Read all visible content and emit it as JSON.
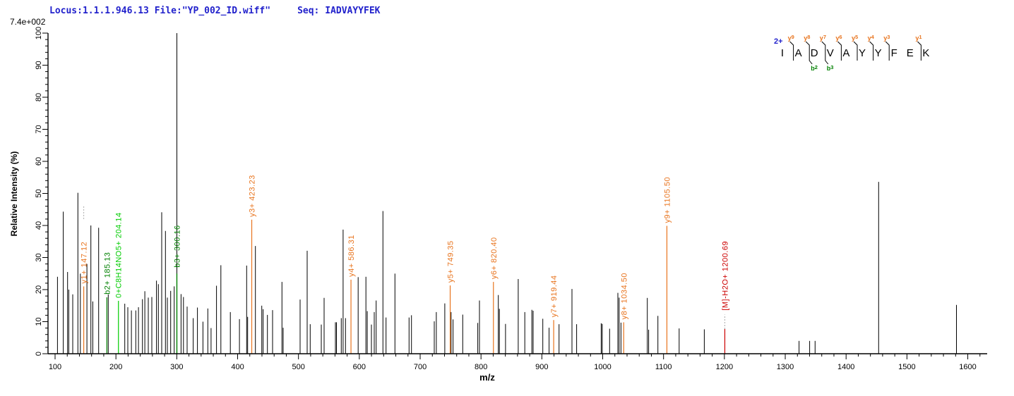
{
  "header": {
    "locus_file": "Locus:1.1.1.946.13 File:\"YP_002_ID.wiff\"",
    "seq_label": "Seq: IADVAYYFEK",
    "max_intensity": "7.4e+002",
    "header_color": "#2222cc"
  },
  "chart_data": {
    "type": "bar",
    "subtype": "centroided-msms-stick-spectrum",
    "title": "",
    "xlabel": "m/z",
    "ylabel": "Relative  Intensity (%)",
    "x_axis": {
      "min": 100,
      "max": 1628,
      "major_tick_step": 100,
      "minor_tick_step": 20,
      "tick_labels": [
        100,
        200,
        300,
        400,
        500,
        600,
        700,
        800,
        900,
        1000,
        1100,
        1200,
        1300,
        1400,
        1500,
        1600
      ]
    },
    "y_axis": {
      "min": 0,
      "max": 100,
      "major_tick_step": 10,
      "minor_tick_step": 2,
      "tick_labels": [
        0,
        10,
        20,
        30,
        40,
        50,
        60,
        70,
        80,
        90,
        100
      ],
      "labels_rotated": true
    },
    "grid": false,
    "base_peak_absolute_intensity": "7.4e+002",
    "colors": {
      "peak": "#000000",
      "y_ion": "#e8741e",
      "b_ion": "#008000",
      "neutral_loss": "#00cc00",
      "precursor_loss": "#cc0000",
      "dash": "#aaaaaa"
    },
    "peaks": [
      [
        104,
        24
      ],
      [
        113.5,
        44.3
      ],
      [
        120.5,
        25.5
      ],
      [
        122.5,
        20
      ],
      [
        129,
        18.5
      ],
      [
        137.5,
        50.2
      ],
      [
        141.5,
        25
      ],
      [
        152.3,
        28
      ],
      [
        158.8,
        40
      ],
      [
        162,
        16.3
      ],
      [
        171.6,
        39.3
      ],
      [
        187.4,
        18.5
      ],
      [
        214.5,
        15.6
      ],
      [
        219.5,
        14.5
      ],
      [
        225.5,
        13.5
      ],
      [
        232.7,
        13.5
      ],
      [
        237,
        14.5
      ],
      [
        243.5,
        17
      ],
      [
        247.5,
        19.5
      ],
      [
        253.2,
        17.5
      ],
      [
        259,
        17.7
      ],
      [
        266.7,
        22.8
      ],
      [
        269.8,
        21.7
      ],
      [
        275.2,
        44.1
      ],
      [
        281.4,
        38.3
      ],
      [
        284.5,
        17.5
      ],
      [
        290,
        19.6
      ],
      [
        295.8,
        21
      ],
      [
        307,
        18.6
      ],
      [
        311,
        17.7
      ],
      [
        317,
        14.7
      ],
      [
        327,
        11.1
      ],
      [
        334,
        14.4
      ],
      [
        343,
        10
      ],
      [
        351,
        14.1
      ],
      [
        356.4,
        8
      ],
      [
        365.3,
        21.2
      ],
      [
        372.5,
        27.6
      ],
      [
        388,
        13
      ],
      [
        403,
        10.8
      ],
      [
        414.8,
        27.5
      ],
      [
        416.5,
        11.5
      ],
      [
        429.2,
        33.6
      ],
      [
        439.7,
        15
      ],
      [
        441.9,
        13.9
      ],
      [
        449,
        12.1
      ],
      [
        457.4,
        13.6
      ],
      [
        472.9,
        22.4
      ],
      [
        474.8,
        8.1
      ],
      [
        502.7,
        16.9
      ],
      [
        514.3,
        32.1
      ],
      [
        519.3,
        9.2
      ],
      [
        537.5,
        9.1
      ],
      [
        542.1,
        17.4
      ],
      [
        560.7,
        9.8
      ],
      [
        562.5,
        9.8
      ],
      [
        570.3,
        11.1
      ],
      [
        573.4,
        38.7
      ],
      [
        577.3,
        11.1
      ],
      [
        598.1,
        23.9
      ],
      [
        610.9,
        24
      ],
      [
        613,
        13.3
      ],
      [
        619.9,
        9.1
      ],
      [
        624.5,
        13
      ],
      [
        627.7,
        16.6
      ],
      [
        638.8,
        44.5
      ],
      [
        643.9,
        11.3
      ],
      [
        658.6,
        25
      ],
      [
        681.8,
        11.3
      ],
      [
        685.7,
        12
      ],
      [
        723.2,
        10.1
      ],
      [
        726.6,
        13
      ],
      [
        740.5,
        15.7
      ],
      [
        750.8,
        13
      ],
      [
        754.1,
        10.7
      ],
      [
        769.9,
        12.2
      ],
      [
        794.7,
        9.6
      ],
      [
        797.5,
        16.6
      ],
      [
        828.5,
        18.3
      ],
      [
        830.2,
        14
      ],
      [
        840.3,
        9.3
      ],
      [
        861.2,
        23.3
      ],
      [
        872,
        13
      ],
      [
        883.6,
        13.7
      ],
      [
        885.6,
        13.4
      ],
      [
        901.5,
        10.9
      ],
      [
        911.9,
        8.1
      ],
      [
        928.2,
        9.2
      ],
      [
        949.5,
        20.2
      ],
      [
        957.2,
        9.2
      ],
      [
        997.5,
        9.5
      ],
      [
        999.3,
        9.3
      ],
      [
        1011.3,
        7.8
      ],
      [
        1024.9,
        19
      ],
      [
        1027,
        17.5
      ],
      [
        1030,
        9.7
      ],
      [
        1073.3,
        17.4
      ],
      [
        1075.5,
        7.5
      ],
      [
        1090.7,
        11.8
      ],
      [
        1125.6,
        7.9
      ],
      [
        1167,
        7.6
      ],
      [
        1322.7,
        4
      ],
      [
        1340.1,
        4
      ],
      [
        1349,
        4
      ],
      [
        1453.5,
        53.6
      ],
      [
        1581.4,
        15.2
      ]
    ],
    "labeled_peaks": [
      {
        "label": "y1+ 147.12",
        "mz": 147.12,
        "pct": 21,
        "color": "y_ion",
        "dash": [
          42,
          46
        ],
        "dash_above_label": true
      },
      {
        "label": "b2+ 185.13",
        "mz": 185.13,
        "pct": 17.6,
        "color": "b_ion"
      },
      {
        "label": "0+C8H14NO5+ 204.14",
        "mz": 204.14,
        "pct": 16.5,
        "color": "neutral_loss"
      },
      {
        "label": "b3+ 300.16",
        "mz": 300.16,
        "pct": 100,
        "color": "b_ion",
        "line_black": true,
        "overlay_pct": 25,
        "label_pct": 26
      },
      {
        "label": "y3+ 423.23",
        "mz": 423.23,
        "pct": 41.8,
        "color": "y_ion"
      },
      {
        "label": "y4+ 586.31",
        "mz": 586.31,
        "pct": 23.1,
        "color": "y_ion"
      },
      {
        "label": "y5+ 749.35",
        "mz": 749.35,
        "pct": 21.3,
        "color": "y_ion"
      },
      {
        "label": "y6+ 820.40",
        "mz": 820.4,
        "pct": 22.4,
        "color": "y_ion"
      },
      {
        "label": "y7+ 919.44",
        "mz": 919.44,
        "pct": 10.5,
        "color": "y_ion"
      },
      {
        "label": "y8+ 1034.50",
        "mz": 1034.5,
        "pct": 9.8,
        "color": "y_ion"
      },
      {
        "label": "y9+ 1105.50",
        "mz": 1105.5,
        "pct": 39.9,
        "color": "y_ion"
      },
      {
        "label": "[M]-H2O+ 1200.69",
        "mz": 1200.69,
        "pct": 7.7,
        "color": "precursor_loss",
        "dash": [
          7.7,
          12.2
        ],
        "label_pct": 12.6
      }
    ],
    "sequence_annotation": {
      "charge": "2+",
      "residues": [
        "I",
        "A",
        "D",
        "V",
        "A",
        "Y",
        "Y",
        "F",
        "E",
        "K"
      ],
      "y_ions": [
        {
          "gap": 1,
          "ion": "y",
          "num": "9"
        },
        {
          "gap": 2,
          "ion": "y",
          "num": "8"
        },
        {
          "gap": 3,
          "ion": "y",
          "num": "7"
        },
        {
          "gap": 4,
          "ion": "y",
          "num": "6"
        },
        {
          "gap": 5,
          "ion": "y",
          "num": "5"
        },
        {
          "gap": 6,
          "ion": "y",
          "num": "4"
        },
        {
          "gap": 7,
          "ion": "y",
          "num": "3"
        },
        {
          "gap": 9,
          "ion": "y",
          "num": "1"
        }
      ],
      "b_ions": [
        {
          "gap": 2,
          "ion": "b",
          "num": "2"
        },
        {
          "gap": 3,
          "ion": "b",
          "num": "3"
        }
      ]
    }
  }
}
